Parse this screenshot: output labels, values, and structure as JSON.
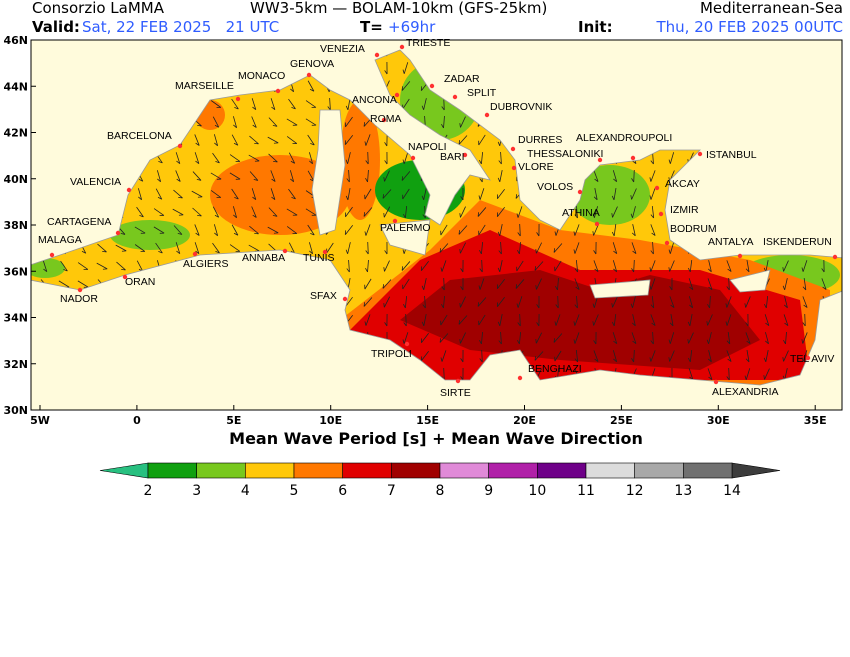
{
  "header": {
    "org": "Consorzio LaMMA",
    "model": "WW3-5km — BOLAM-10km (GFS-25km)",
    "region": "Mediterranean-Sea",
    "valid_label": "Valid:",
    "valid": "Sat, 22 FEB 2025   21 UTC",
    "lead_label": "T=",
    "lead": "+69hr",
    "init_label": "Init:",
    "init": "Thu, 20 FEB 2025 00UTC"
  },
  "map": {
    "title": "Mean Wave Period [s] + Mean Wave Direction",
    "lat_ticks": [
      "46N",
      "44N",
      "42N",
      "40N",
      "38N",
      "36N",
      "34N",
      "32N",
      "30N"
    ],
    "lon_ticks": [
      "5W",
      "0",
      "5E",
      "10E",
      "15E",
      "20E",
      "25E",
      "30E",
      "35E"
    ],
    "cities": [
      "VENEZIA",
      "TRIESTE",
      "MONACO",
      "GENOVA",
      "MARSEILLE",
      "ZADAR",
      "SPLIT",
      "ANCONA",
      "DUBROVNIK",
      "ROMA",
      "BARCELONA",
      "DURRES",
      "ALEXANDROUPOLI",
      "NAPOLI",
      "THESSALONIKI",
      "ISTANBUL",
      "BARI",
      "VLORE",
      "VALENCIA",
      "VOLOS",
      "AKCAY",
      "ATHINA",
      "IZMIR",
      "PALERMO",
      "CARTAGENA",
      "BODRUM",
      "MALAGA",
      "ANTALYA",
      "ISKENDERUN",
      "ALGIERS",
      "ANNABA",
      "TUNIS",
      "ORAN",
      "SFAX",
      "NADOR",
      "TRIPOLI",
      "TEL AVIV",
      "BENGHAZI",
      "SIRTE",
      "ALEXANDRIA"
    ]
  },
  "colorbar": {
    "ticks": [
      2,
      3,
      4,
      5,
      6,
      7,
      8,
      9,
      10,
      11,
      12,
      13,
      14
    ],
    "colors": [
      "#10a010",
      "#78c81e",
      "#ffc80a",
      "#ff7800",
      "#e00000",
      "#a00000",
      "#e08ad8",
      "#b020a8",
      "#6e0088",
      "#dcdcdc",
      "#a8a8a8",
      "#707070"
    ],
    "under_color": "#28c080",
    "over_color": "#3c3c3c"
  }
}
